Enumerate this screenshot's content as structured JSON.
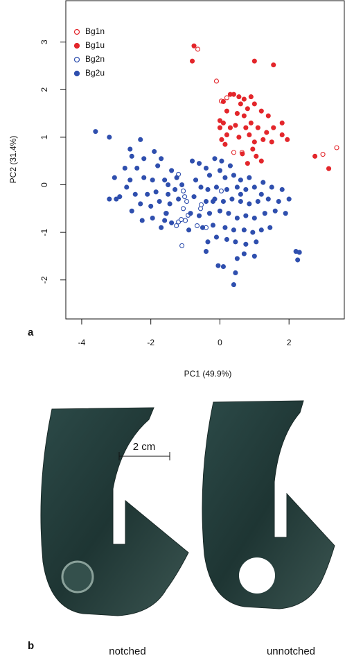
{
  "chart_data": {
    "type": "scatter",
    "xlabel": "PC1 (49.9%)",
    "ylabel": "PC2 (31.4%)",
    "xlim": [
      -4.46,
      3.6
    ],
    "ylim": [
      -2.82,
      3.87
    ],
    "xticks": [
      -4,
      -2,
      0,
      2
    ],
    "yticks": [
      -2,
      -1,
      0,
      1,
      2,
      3
    ],
    "legend": "top-left",
    "series": [
      {
        "name": "Bg1n",
        "color": "#e3262b",
        "filled": false,
        "x": [
          -0.64,
          -0.1,
          0.2,
          0.04,
          0.4,
          0.64,
          2.98,
          3.38
        ],
        "values": [
          2.85,
          2.18,
          1.83,
          1.76,
          0.68,
          0.68,
          0.64,
          0.78
        ]
      },
      {
        "name": "Bg1u",
        "color": "#e3262b",
        "filled": true,
        "x": [
          -0.75,
          -0.8,
          1.0,
          1.55,
          0.1,
          0.3,
          0.4,
          0.55,
          0.7,
          0.9,
          0.6,
          0.8,
          1.0,
          0.2,
          0.5,
          0.7,
          1.2,
          1.4,
          0.0,
          0.1,
          0.3,
          0.45,
          0.75,
          0.9,
          1.1,
          1.35,
          1.55,
          1.8,
          0.0,
          0.2,
          0.55,
          0.85,
          1.25,
          1.5,
          1.8,
          1.95,
          0.05,
          0.65,
          0.95,
          1.05,
          1.2,
          0.8,
          2.75,
          3.15,
          1.0,
          0.15
        ],
        "values": [
          2.92,
          2.6,
          2.6,
          2.52,
          1.75,
          1.9,
          1.9,
          1.85,
          1.8,
          1.85,
          1.7,
          1.6,
          1.7,
          1.55,
          1.5,
          1.45,
          1.55,
          1.45,
          1.35,
          1.3,
          1.2,
          1.25,
          1.2,
          1.3,
          1.2,
          1.1,
          1.2,
          1.3,
          1.2,
          1.05,
          1.0,
          1.05,
          0.95,
          0.9,
          1.05,
          0.95,
          0.95,
          0.65,
          0.75,
          0.6,
          0.5,
          0.45,
          0.6,
          0.34,
          0.9,
          0.85
        ]
      },
      {
        "name": "Bg2n",
        "color": "#2f4fae",
        "filled": false,
        "x": [
          -1.2,
          -1.06,
          -1.02,
          -0.96,
          -1.06,
          -0.92,
          -1.0,
          -1.2,
          -1.12,
          -1.26,
          -1.1,
          -0.66,
          -0.4,
          -0.56,
          -1.56,
          0.04,
          -0.54
        ],
        "values": [
          0.22,
          -0.13,
          -0.25,
          -0.35,
          -0.5,
          -0.64,
          -0.75,
          -0.78,
          -0.73,
          -0.86,
          -1.28,
          -0.86,
          -0.9,
          -0.5,
          -0.6,
          -0.13,
          -0.42
        ]
      },
      {
        "name": "Bg2u",
        "color": "#2f4fae",
        "filled": true,
        "x": [
          -3.6,
          -3.2,
          -2.6,
          -2.3,
          -2.55,
          -2.2,
          -1.9,
          -1.7,
          -1.8,
          -2.4,
          -2.75,
          -3.05,
          -2.6,
          -2.2,
          -1.95,
          -1.6,
          -1.4,
          -1.25,
          -1.5,
          -1.1,
          -2.7,
          -2.45,
          -2.9,
          -3.2,
          -3.0,
          -2.1,
          -1.85,
          -1.5,
          -1.3,
          -2.3,
          -2.0,
          -1.75,
          -1.45,
          -1.2,
          -2.55,
          -2.25,
          -1.95,
          -1.6,
          -1.4,
          -1.55,
          -1.7,
          -0.8,
          -0.6,
          -0.4,
          -0.15,
          0.05,
          0.3,
          -0.3,
          0.0,
          0.15,
          0.4,
          0.6,
          0.85,
          -0.7,
          -0.55,
          -0.35,
          -0.1,
          0.2,
          0.5,
          0.75,
          1.0,
          1.25,
          1.5,
          1.8,
          2.0,
          1.7,
          1.4,
          1.1,
          0.85,
          0.6,
          0.35,
          0.1,
          -0.15,
          -0.4,
          -0.75,
          -0.85,
          -0.6,
          -0.3,
          0.0,
          0.25,
          0.5,
          0.75,
          1.0,
          1.3,
          1.6,
          1.9,
          -0.5,
          -0.2,
          0.15,
          0.4,
          0.7,
          0.95,
          1.2,
          1.45,
          1.05,
          0.75,
          0.45,
          0.2,
          -0.1,
          -0.35,
          0.7,
          0.5,
          1.0,
          -0.05,
          0.1,
          0.45,
          0.4,
          2.2,
          2.3,
          2.25,
          -0.4,
          -0.9,
          -0.2,
          0.6,
          1.2
        ],
        "values": [
          1.12,
          1.0,
          0.75,
          0.95,
          0.6,
          0.55,
          0.7,
          0.55,
          0.4,
          0.35,
          0.35,
          0.15,
          0.1,
          0.15,
          0.1,
          0.1,
          0.3,
          0.15,
          0.0,
          0.0,
          -0.05,
          -0.2,
          -0.25,
          -0.3,
          -0.3,
          -0.2,
          -0.15,
          -0.2,
          -0.1,
          -0.4,
          -0.45,
          -0.35,
          -0.4,
          -0.3,
          -0.55,
          -0.75,
          -0.7,
          -0.75,
          -0.8,
          -0.6,
          -0.9,
          0.5,
          0.45,
          0.35,
          0.55,
          0.5,
          0.4,
          0.2,
          0.3,
          0.15,
          0.2,
          0.1,
          0.15,
          0.1,
          -0.05,
          -0.1,
          -0.05,
          -0.1,
          -0.05,
          -0.1,
          -0.05,
          0.05,
          -0.05,
          -0.1,
          -0.3,
          -0.35,
          -0.3,
          -0.35,
          -0.4,
          -0.35,
          -0.3,
          -0.35,
          -0.3,
          -0.35,
          -0.25,
          -0.6,
          -0.65,
          -0.6,
          -0.55,
          -0.6,
          -0.7,
          -0.65,
          -0.7,
          -0.6,
          -0.55,
          -0.6,
          -0.9,
          -0.85,
          -0.9,
          -0.95,
          -0.95,
          -1.0,
          -0.95,
          -0.9,
          -1.2,
          -1.25,
          -1.2,
          -1.15,
          -1.1,
          -1.2,
          -1.45,
          -1.55,
          -1.5,
          -1.7,
          -1.72,
          -1.85,
          -2.1,
          -1.4,
          -1.42,
          -1.58,
          -1.4,
          -0.95,
          -0.35,
          -0.2,
          -0.2
        ]
      }
    ]
  },
  "panel_labels": [
    "a",
    "b"
  ],
  "photo": {
    "scale_bar": "2 cm",
    "captions": [
      "notched",
      "unnotched"
    ]
  }
}
